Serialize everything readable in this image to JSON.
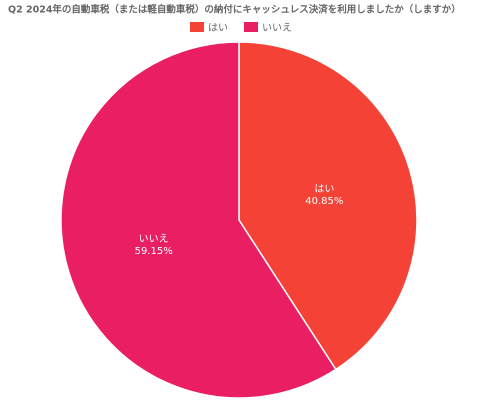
{
  "chart_data": {
    "type": "pie",
    "title": "Q2 2024年の自動車税（または軽自動車税）の納付にキャッシュレス決済を利用しましたか（しますか）",
    "categories": [
      "はい",
      "いいえ"
    ],
    "values": [
      40.85,
      59.15
    ],
    "value_labels": [
      "40.85%",
      "59.15%"
    ],
    "colors": [
      "#f44336",
      "#e91e63"
    ],
    "legend": "top"
  }
}
